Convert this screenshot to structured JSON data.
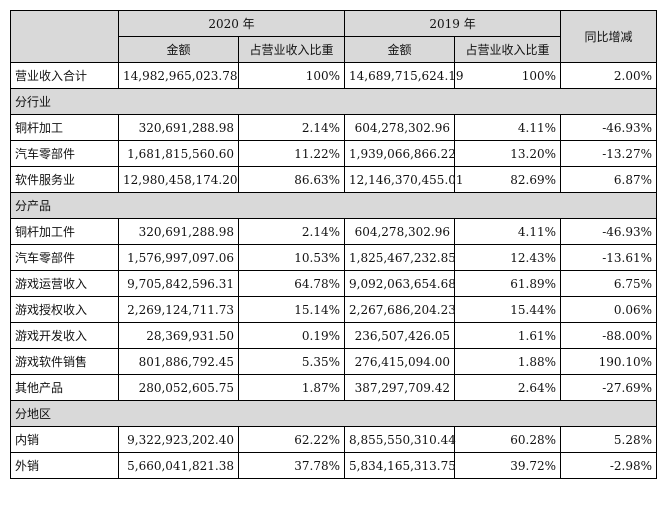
{
  "header": {
    "year_2020": "2020 年",
    "year_2019": "2019 年",
    "yoy": "同比增减",
    "amount": "金额",
    "share": "占营业收入比重"
  },
  "total": {
    "label": "营业收入合计",
    "a2020": "14,982,965,023.78",
    "p2020": "100%",
    "a2019": "14,689,715,624.19",
    "p2019": "100%",
    "yoy": "2.00%"
  },
  "sections": [
    {
      "title": "分行业",
      "rows": [
        {
          "label": "铜杆加工",
          "a2020": "320,691,288.98",
          "p2020": "2.14%",
          "a2019": "604,278,302.96",
          "p2019": "4.11%",
          "yoy": "-46.93%"
        },
        {
          "label": "汽车零部件",
          "a2020": "1,681,815,560.60",
          "p2020": "11.22%",
          "a2019": "1,939,066,866.22",
          "p2019": "13.20%",
          "yoy": "-13.27%"
        },
        {
          "label": "软件服务业",
          "a2020": "12,980,458,174.20",
          "p2020": "86.63%",
          "a2019": "12,146,370,455.01",
          "p2019": "82.69%",
          "yoy": "6.87%"
        }
      ]
    },
    {
      "title": "分产品",
      "rows": [
        {
          "label": "铜杆加工件",
          "a2020": "320,691,288.98",
          "p2020": "2.14%",
          "a2019": "604,278,302.96",
          "p2019": "4.11%",
          "yoy": "-46.93%"
        },
        {
          "label": "汽车零部件",
          "a2020": "1,576,997,097.06",
          "p2020": "10.53%",
          "a2019": "1,825,467,232.85",
          "p2019": "12.43%",
          "yoy": "-13.61%"
        },
        {
          "label": "游戏运营收入",
          "a2020": "9,705,842,596.31",
          "p2020": "64.78%",
          "a2019": "9,092,063,654.68",
          "p2019": "61.89%",
          "yoy": "6.75%"
        },
        {
          "label": "游戏授权收入",
          "a2020": "2,269,124,711.73",
          "p2020": "15.14%",
          "a2019": "2,267,686,204.23",
          "p2019": "15.44%",
          "yoy": "0.06%"
        },
        {
          "label": "游戏开发收入",
          "a2020": "28,369,931.50",
          "p2020": "0.19%",
          "a2019": "236,507,426.05",
          "p2019": "1.61%",
          "yoy": "-88.00%"
        },
        {
          "label": "游戏软件销售",
          "a2020": "801,886,792.45",
          "p2020": "5.35%",
          "a2019": "276,415,094.00",
          "p2019": "1.88%",
          "yoy": "190.10%"
        },
        {
          "label": "其他产品",
          "a2020": "280,052,605.75",
          "p2020": "1.87%",
          "a2019": "387,297,709.42",
          "p2019": "2.64%",
          "yoy": "-27.69%"
        }
      ]
    },
    {
      "title": "分地区",
      "rows": [
        {
          "label": "内销",
          "a2020": "9,322,923,202.40",
          "p2020": "62.22%",
          "a2019": "8,855,550,310.44",
          "p2019": "60.28%",
          "yoy": "5.28%"
        },
        {
          "label": "外销",
          "a2020": "5,660,041,821.38",
          "p2020": "37.78%",
          "a2019": "5,834,165,313.75",
          "p2019": "39.72%",
          "yoy": "-2.98%"
        }
      ]
    }
  ]
}
